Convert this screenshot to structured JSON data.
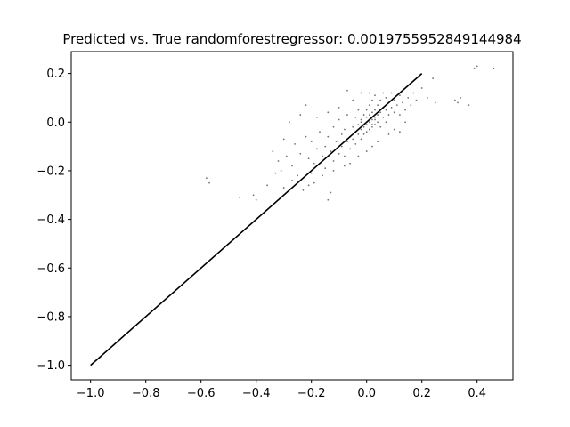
{
  "chart_data": {
    "type": "scatter",
    "title": "Predicted vs. True randomforestregressor: 0.0019755952849144984",
    "xlabel": "",
    "ylabel": "",
    "xlim": [
      -1.07,
      0.53
    ],
    "ylim": [
      -1.06,
      0.29
    ],
    "x_ticks": [
      -1.0,
      -0.8,
      -0.6,
      -0.4,
      -0.2,
      0.0,
      0.2,
      0.4
    ],
    "x_tick_labels": [
      "−1.0",
      "−0.8",
      "−0.6",
      "−0.4",
      "−0.2",
      "0.0",
      "0.2",
      "0.4"
    ],
    "y_ticks": [
      -1.0,
      -0.8,
      -0.6,
      -0.4,
      -0.2,
      0.0,
      0.2
    ],
    "y_tick_labels": [
      "−1.0",
      "−0.8",
      "−0.6",
      "−0.4",
      "−0.2",
      "0.0",
      "0.2"
    ],
    "grid": false,
    "reference_line": {
      "x": [
        -1.0,
        0.2
      ],
      "y": [
        -1.0,
        0.2
      ],
      "color": "#000000"
    },
    "series": [
      {
        "marker_color": "#000000",
        "points": [
          [
            -0.58,
            -0.23
          ],
          [
            -0.57,
            -0.25
          ],
          [
            -0.46,
            -0.31
          ],
          [
            -0.41,
            -0.3
          ],
          [
            -0.4,
            -0.32
          ],
          [
            -0.36,
            -0.26
          ],
          [
            -0.33,
            -0.21
          ],
          [
            -0.31,
            -0.2
          ],
          [
            -0.3,
            -0.27
          ],
          [
            -0.27,
            -0.24
          ],
          [
            -0.25,
            -0.22
          ],
          [
            -0.23,
            -0.28
          ],
          [
            -0.21,
            -0.26
          ],
          [
            -0.19,
            -0.25
          ],
          [
            -0.14,
            -0.32
          ],
          [
            -0.13,
            -0.29
          ],
          [
            -0.34,
            -0.12
          ],
          [
            -0.32,
            -0.16
          ],
          [
            -0.29,
            -0.14
          ],
          [
            -0.27,
            -0.18
          ],
          [
            -0.26,
            -0.09
          ],
          [
            -0.24,
            -0.13
          ],
          [
            -0.22,
            -0.06
          ],
          [
            -0.21,
            -0.15
          ],
          [
            -0.2,
            -0.08
          ],
          [
            -0.19,
            -0.17
          ],
          [
            -0.18,
            -0.11
          ],
          [
            -0.17,
            -0.04
          ],
          [
            -0.16,
            -0.14
          ],
          [
            -0.15,
            -0.1
          ],
          [
            -0.15,
            -0.19
          ],
          [
            -0.14,
            -0.06
          ],
          [
            -0.13,
            -0.12
          ],
          [
            -0.12,
            -0.02
          ],
          [
            -0.12,
            -0.16
          ],
          [
            -0.11,
            -0.08
          ],
          [
            -0.1,
            -0.13
          ],
          [
            -0.1,
            0.01
          ],
          [
            -0.09,
            -0.05
          ],
          [
            -0.09,
            -0.1
          ],
          [
            -0.08,
            -0.14
          ],
          [
            -0.08,
            -0.03
          ],
          [
            -0.07,
            -0.08
          ],
          [
            -0.07,
            0.03
          ],
          [
            -0.06,
            -0.06
          ],
          [
            -0.06,
            -0.11
          ],
          [
            -0.05,
            -0.02
          ],
          [
            -0.05,
            -0.07
          ],
          [
            -0.04,
            0.02
          ],
          [
            -0.04,
            -0.04
          ],
          [
            -0.04,
            -0.09
          ],
          [
            -0.03,
            -0.01
          ],
          [
            -0.03,
            -0.05
          ],
          [
            -0.03,
            0.05
          ],
          [
            -0.02,
            -0.03
          ],
          [
            -0.02,
            -0.07
          ],
          [
            -0.02,
            0.01
          ],
          [
            -0.01,
            -0.02
          ],
          [
            -0.01,
            -0.05
          ],
          [
            -0.01,
            0.03
          ],
          [
            0.0,
            -0.01
          ],
          [
            0.0,
            -0.04
          ],
          [
            0.0,
            0.02
          ],
          [
            0.0,
            0.05
          ],
          [
            0.01,
            0.0
          ],
          [
            0.01,
            -0.03
          ],
          [
            0.01,
            0.03
          ],
          [
            0.01,
            0.07
          ],
          [
            0.02,
            0.01
          ],
          [
            0.02,
            -0.02
          ],
          [
            0.02,
            0.04
          ],
          [
            0.02,
            0.09
          ],
          [
            0.03,
            0.02
          ],
          [
            0.03,
            -0.01
          ],
          [
            0.03,
            0.05
          ],
          [
            0.03,
            0.11
          ],
          [
            0.04,
            0.03
          ],
          [
            0.04,
            0.0
          ],
          [
            0.04,
            0.07
          ],
          [
            0.05,
            0.04
          ],
          [
            0.05,
            -0.02
          ],
          [
            0.05,
            0.09
          ],
          [
            0.06,
            0.02
          ],
          [
            0.06,
            0.06
          ],
          [
            0.06,
            0.12
          ],
          [
            0.07,
            0.05
          ],
          [
            0.07,
            0.0
          ],
          [
            0.07,
            0.1
          ],
          [
            0.08,
            0.03
          ],
          [
            0.08,
            0.08
          ],
          [
            0.09,
            0.06
          ],
          [
            0.09,
            0.12
          ],
          [
            0.1,
            0.04
          ],
          [
            0.1,
            0.09
          ],
          [
            0.11,
            0.07
          ],
          [
            0.12,
            0.11
          ],
          [
            0.12,
            0.03
          ],
          [
            0.13,
            0.08
          ],
          [
            0.14,
            0.05
          ],
          [
            0.15,
            0.1
          ],
          [
            0.16,
            0.07
          ],
          [
            0.17,
            0.12
          ],
          [
            0.18,
            0.09
          ],
          [
            0.2,
            0.14
          ],
          [
            0.22,
            0.1
          ],
          [
            0.24,
            0.18
          ],
          [
            0.25,
            0.08
          ],
          [
            0.32,
            0.09
          ],
          [
            0.33,
            0.08
          ],
          [
            0.34,
            0.1
          ],
          [
            0.37,
            0.07
          ],
          [
            0.39,
            0.22
          ],
          [
            0.4,
            0.23
          ],
          [
            0.46,
            0.22
          ],
          [
            -0.05,
            0.09
          ],
          [
            -0.07,
            0.13
          ],
          [
            -0.02,
            0.12
          ],
          [
            0.01,
            0.12
          ],
          [
            -0.1,
            0.06
          ],
          [
            -0.14,
            0.04
          ],
          [
            -0.18,
            0.02
          ],
          [
            -0.22,
            0.07
          ],
          [
            -0.24,
            0.03
          ],
          [
            -0.28,
            0.0
          ],
          [
            -0.3,
            -0.07
          ],
          [
            -0.2,
            -0.21
          ],
          [
            -0.16,
            -0.22
          ],
          [
            -0.12,
            -0.2
          ],
          [
            -0.08,
            -0.18
          ],
          [
            -0.06,
            -0.17
          ],
          [
            -0.03,
            -0.14
          ],
          [
            0.0,
            -0.12
          ],
          [
            0.02,
            -0.1
          ],
          [
            0.04,
            -0.08
          ],
          [
            0.08,
            -0.05
          ],
          [
            0.1,
            -0.03
          ],
          [
            0.12,
            -0.04
          ],
          [
            0.14,
            0.0
          ],
          [
            0.0,
            0.0
          ],
          [
            -0.01,
            -0.01
          ],
          [
            0.01,
            0.01
          ],
          [
            -0.02,
            0.0
          ],
          [
            0.02,
            -0.01
          ],
          [
            -0.03,
            -0.03
          ],
          [
            0.03,
            0.01
          ]
        ]
      }
    ]
  }
}
